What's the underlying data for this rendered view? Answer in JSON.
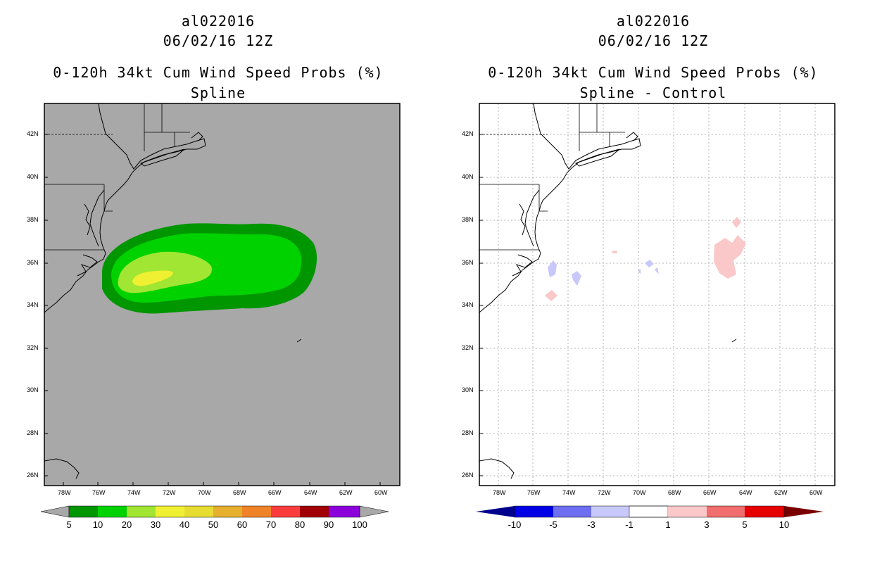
{
  "left_panel": {
    "title_line1": "al022016",
    "title_line2": "06/02/16 12Z",
    "title_line3": "0-120h 34kt Cum Wind Speed Probs (%)",
    "title_line4": "Spline",
    "colorbar": {
      "labels": [
        "5",
        "10",
        "20",
        "30",
        "40",
        "50",
        "60",
        "70",
        "80",
        "90",
        "100"
      ],
      "colors": [
        "#009600",
        "#00d200",
        "#a0e632",
        "#e6e632",
        "#e6dc32",
        "#e6af2d",
        "#f08228",
        "#fa3c3c",
        "#a00000",
        "#8c00dc"
      ],
      "arrow_color": "#a8a8a8"
    },
    "background_color": "#a8a8a8"
  },
  "right_panel": {
    "title_line1": "al022016",
    "title_line2": "06/02/16 12Z",
    "title_line3": "0-120h 34kt Cum Wind Speed Probs (%)",
    "title_line4": "Spline - Control",
    "colorbar": {
      "labels": [
        "-10",
        "-5",
        "-3",
        "-1",
        "1",
        "3",
        "5",
        "10"
      ],
      "colors": [
        "#000096",
        "#0000e6",
        "#6e6ef0",
        "#c8c8fa",
        "#ffffff",
        "#fac8c8",
        "#f06e6e",
        "#e60000"
      ],
      "arrow_left": "#00008c",
      "arrow_right": "#780000"
    }
  },
  "axes": {
    "lat_labels": [
      "42N",
      "40N",
      "38N",
      "36N",
      "34N",
      "32N",
      "30N",
      "28N",
      "26N"
    ],
    "lon_labels": [
      "78W",
      "76W",
      "74W",
      "72W",
      "70W",
      "68W",
      "66W",
      "64W",
      "62W",
      "60W"
    ]
  }
}
